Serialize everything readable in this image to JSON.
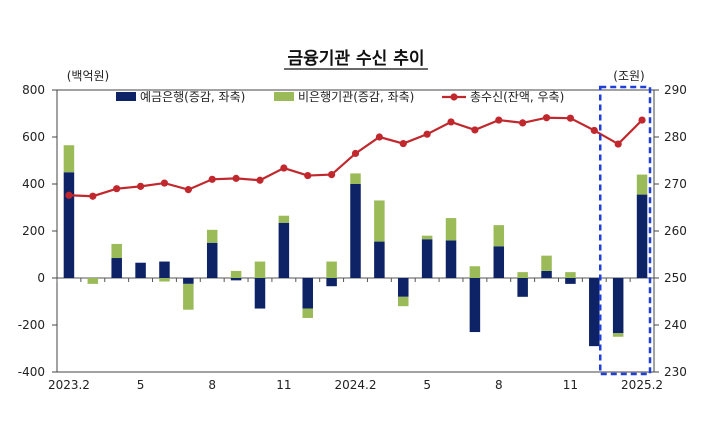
{
  "chart_data": {
    "type": "bar",
    "title": "금융기관 수신 추이",
    "left_unit": "(백억원)",
    "right_unit": "(조원)",
    "ylim_left": [
      -400,
      800
    ],
    "yticks_left": [
      -400,
      -200,
      0,
      200,
      400,
      600,
      800
    ],
    "ylim_right": [
      230,
      290
    ],
    "yticks_right": [
      230,
      240,
      250,
      260,
      270,
      280,
      290
    ],
    "x_tick_labels": [
      "2023.2",
      "",
      "",
      "5",
      "",
      "",
      "8",
      "",
      "",
      "11",
      "",
      "",
      "2024.2",
      "",
      "",
      "5",
      "",
      "",
      "8",
      "",
      "",
      "11",
      "",
      "",
      "2025.2"
    ],
    "categories": [
      "2023.2",
      "2023.3",
      "2023.4",
      "2023.5",
      "2023.6",
      "2023.7",
      "2023.8",
      "2023.9",
      "2023.10",
      "2023.11",
      "2023.12",
      "2024.1",
      "2024.2",
      "2024.3",
      "2024.4",
      "2024.5",
      "2024.6",
      "2024.7",
      "2024.8",
      "2024.9",
      "2024.10",
      "2024.11",
      "2024.12",
      "2025.1",
      "2025.2"
    ],
    "series": [
      {
        "name": "예금은행(증감, 좌축)",
        "type": "bar",
        "axis": "left",
        "color": "#0d2366",
        "values": [
          450,
          0,
          85,
          65,
          70,
          -25,
          150,
          -10,
          -130,
          235,
          -130,
          -35,
          400,
          155,
          -80,
          165,
          160,
          -230,
          135,
          -80,
          30,
          -25,
          -290,
          -235,
          355
        ]
      },
      {
        "name": "비은행기관(증감, 좌축)",
        "type": "bar",
        "axis": "left",
        "color": "#9bbb59",
        "values": [
          115,
          -25,
          60,
          0,
          -15,
          -110,
          55,
          30,
          70,
          30,
          -40,
          70,
          45,
          175,
          -40,
          15,
          95,
          50,
          90,
          25,
          65,
          25,
          0,
          -15,
          85
        ]
      },
      {
        "name": "총수신(잔액, 우축)",
        "type": "line",
        "axis": "right",
        "color": "#c0282d",
        "values": [
          267.6,
          267.4,
          269.0,
          269.5,
          270.2,
          268.8,
          271.0,
          271.2,
          270.8,
          273.4,
          271.8,
          272.0,
          276.5,
          280.0,
          278.6,
          280.6,
          283.2,
          281.5,
          283.6,
          283.0,
          284.1,
          284.0,
          281.4,
          278.5,
          283.6
        ]
      }
    ],
    "highlight_box": {
      "from_index": 23,
      "to_index": 24,
      "color": "#1f3fd8"
    },
    "grid": false,
    "legend_position": "top"
  }
}
